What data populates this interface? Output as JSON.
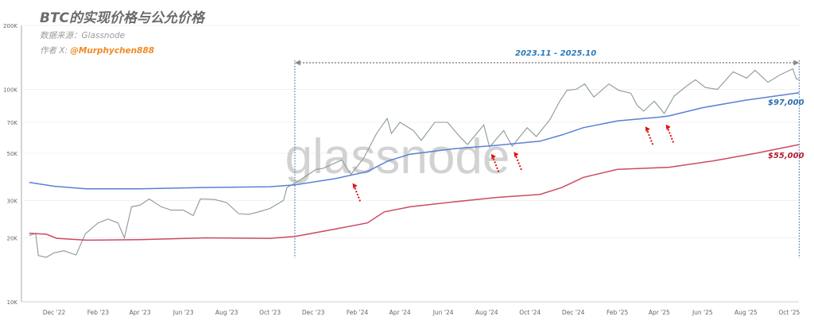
{
  "header": {
    "title": "BTC的实现价格与公允价格",
    "source_label": "数据来源：Glassnode",
    "author_prefix": "作者 X:",
    "author_handle": "@Murphychen888"
  },
  "watermark": "glassnode",
  "annotations": {
    "range_label": "2023.11 - 2025.10",
    "range_start": "2023-11-05",
    "range_end": "2025-10-15",
    "blue_end_label": "$97,000",
    "red_end_label": "$55,000",
    "arrow_dates": [
      "2024-01-23",
      "2024-08-05",
      "2024-09-06",
      "2025-03-10",
      "2025-04-08"
    ]
  },
  "colors": {
    "price": "#8a9a96",
    "blue_line": "#5b7fd6",
    "red_line": "#cc4a62",
    "arrow": "#e01010",
    "range": "#2a7ab8",
    "author": "#f08a24"
  },
  "chart_data": {
    "type": "line",
    "title": "BTC的实现价格与公允价格",
    "y_scale": "log",
    "ylim": [
      10000,
      200000
    ],
    "y_ticks": [
      {
        "v": 10000,
        "label": "10K"
      },
      {
        "v": 20000,
        "label": "20K"
      },
      {
        "v": 30000,
        "label": "30K"
      },
      {
        "v": 50000,
        "label": "50K"
      },
      {
        "v": 70000,
        "label": "70K"
      },
      {
        "v": 100000,
        "label": "100K"
      },
      {
        "v": 200000,
        "label": "200K"
      }
    ],
    "x_ticks": [
      {
        "d": "2022-12-01",
        "label": "Dec '22"
      },
      {
        "d": "2023-02-01",
        "label": "Feb '23"
      },
      {
        "d": "2023-04-01",
        "label": "Apr '23"
      },
      {
        "d": "2023-06-01",
        "label": "Jun '23"
      },
      {
        "d": "2023-08-01",
        "label": "Aug '23"
      },
      {
        "d": "2023-10-01",
        "label": "Oct '23"
      },
      {
        "d": "2023-12-01",
        "label": "Dec '23"
      },
      {
        "d": "2024-02-01",
        "label": "Feb '24"
      },
      {
        "d": "2024-04-01",
        "label": "Apr '24"
      },
      {
        "d": "2024-06-01",
        "label": "Jun '24"
      },
      {
        "d": "2024-08-01",
        "label": "Aug '24"
      },
      {
        "d": "2024-10-01",
        "label": "Oct '24"
      },
      {
        "d": "2024-12-01",
        "label": "Dec '24"
      },
      {
        "d": "2025-02-01",
        "label": "Feb '25"
      },
      {
        "d": "2025-04-01",
        "label": "Apr '25"
      },
      {
        "d": "2025-06-01",
        "label": "Jun '25"
      },
      {
        "d": "2025-08-01",
        "label": "Aug '25"
      },
      {
        "d": "2025-10-01",
        "label": "Oct '25"
      }
    ],
    "grid": true,
    "series": [
      {
        "key": "price",
        "points": [
          [
            "2022-10-27",
            20500
          ],
          [
            "2022-11-05",
            21000
          ],
          [
            "2022-11-09",
            16500
          ],
          [
            "2022-11-20",
            16200
          ],
          [
            "2022-12-01",
            17000
          ],
          [
            "2022-12-15",
            17400
          ],
          [
            "2023-01-01",
            16600
          ],
          [
            "2023-01-14",
            20900
          ],
          [
            "2023-02-01",
            23500
          ],
          [
            "2023-02-15",
            24500
          ],
          [
            "2023-03-01",
            23500
          ],
          [
            "2023-03-10",
            20000
          ],
          [
            "2023-03-20",
            28000
          ],
          [
            "2023-04-01",
            28500
          ],
          [
            "2023-04-14",
            30500
          ],
          [
            "2023-05-01",
            28000
          ],
          [
            "2023-05-15",
            27000
          ],
          [
            "2023-06-01",
            27000
          ],
          [
            "2023-06-15",
            25500
          ],
          [
            "2023-06-25",
            30500
          ],
          [
            "2023-07-15",
            30300
          ],
          [
            "2023-08-01",
            29300
          ],
          [
            "2023-08-18",
            26000
          ],
          [
            "2023-09-01",
            25800
          ],
          [
            "2023-09-15",
            26500
          ],
          [
            "2023-10-01",
            27500
          ],
          [
            "2023-10-20",
            30000
          ],
          [
            "2023-10-25",
            34500
          ],
          [
            "2023-11-10",
            37000
          ],
          [
            "2023-12-05",
            42000
          ],
          [
            "2023-12-15",
            42500
          ],
          [
            "2024-01-10",
            46500
          ],
          [
            "2024-01-23",
            39800
          ],
          [
            "2024-02-10",
            47500
          ],
          [
            "2024-02-28",
            62000
          ],
          [
            "2024-03-14",
            73000
          ],
          [
            "2024-03-20",
            62000
          ],
          [
            "2024-04-01",
            70000
          ],
          [
            "2024-04-20",
            64000
          ],
          [
            "2024-05-01",
            57500
          ],
          [
            "2024-05-20",
            70000
          ],
          [
            "2024-06-07",
            70000
          ],
          [
            "2024-06-24",
            60000
          ],
          [
            "2024-07-05",
            55000
          ],
          [
            "2024-07-28",
            68000
          ],
          [
            "2024-08-05",
            53500
          ],
          [
            "2024-08-25",
            64000
          ],
          [
            "2024-09-06",
            54000
          ],
          [
            "2024-09-27",
            66000
          ],
          [
            "2024-10-10",
            60000
          ],
          [
            "2024-10-29",
            72000
          ],
          [
            "2024-11-12",
            88000
          ],
          [
            "2024-11-22",
            99000
          ],
          [
            "2024-12-05",
            100000
          ],
          [
            "2024-12-17",
            106000
          ],
          [
            "2024-12-30",
            92000
          ],
          [
            "2025-01-20",
            106000
          ],
          [
            "2025-02-03",
            99000
          ],
          [
            "2025-02-20",
            96000
          ],
          [
            "2025-03-01",
            84000
          ],
          [
            "2025-03-10",
            79000
          ],
          [
            "2025-03-25",
            88000
          ],
          [
            "2025-04-08",
            77000
          ],
          [
            "2025-04-22",
            93000
          ],
          [
            "2025-05-10",
            104000
          ],
          [
            "2025-05-22",
            111000
          ],
          [
            "2025-06-05",
            102000
          ],
          [
            "2025-06-22",
            100000
          ],
          [
            "2025-07-14",
            121000
          ],
          [
            "2025-08-02",
            113000
          ],
          [
            "2025-08-14",
            123000
          ],
          [
            "2025-09-01",
            108000
          ],
          [
            "2025-09-18",
            117000
          ],
          [
            "2025-10-06",
            125000
          ],
          [
            "2025-10-11",
            112000
          ],
          [
            "2025-10-15",
            111000
          ]
        ]
      },
      {
        "key": "blue_line",
        "points": [
          [
            "2022-10-27",
            36500
          ],
          [
            "2022-12-01",
            35000
          ],
          [
            "2023-01-15",
            34000
          ],
          [
            "2023-04-01",
            34000
          ],
          [
            "2023-07-01",
            34500
          ],
          [
            "2023-10-01",
            34800
          ],
          [
            "2023-11-05",
            35500
          ],
          [
            "2024-01-01",
            38000
          ],
          [
            "2024-02-15",
            41000
          ],
          [
            "2024-03-15",
            46000
          ],
          [
            "2024-04-15",
            49500
          ],
          [
            "2024-06-15",
            52500
          ],
          [
            "2024-08-15",
            54500
          ],
          [
            "2024-10-15",
            57000
          ],
          [
            "2024-11-15",
            61000
          ],
          [
            "2024-12-15",
            66000
          ],
          [
            "2025-02-01",
            71000
          ],
          [
            "2025-04-01",
            74000
          ],
          [
            "2025-04-15",
            75000
          ],
          [
            "2025-06-01",
            82000
          ],
          [
            "2025-08-01",
            89000
          ],
          [
            "2025-10-15",
            96500
          ]
        ]
      },
      {
        "key": "red_line",
        "points": [
          [
            "2022-10-27",
            21000
          ],
          [
            "2022-11-20",
            20800
          ],
          [
            "2022-12-05",
            19900
          ],
          [
            "2023-01-15",
            19500
          ],
          [
            "2023-04-01",
            19600
          ],
          [
            "2023-07-01",
            20000
          ],
          [
            "2023-10-01",
            19900
          ],
          [
            "2023-11-05",
            20300
          ],
          [
            "2024-01-01",
            22000
          ],
          [
            "2024-02-15",
            23500
          ],
          [
            "2024-03-10",
            26500
          ],
          [
            "2024-04-15",
            28000
          ],
          [
            "2024-06-15",
            29500
          ],
          [
            "2024-08-15",
            31000
          ],
          [
            "2024-10-15",
            32000
          ],
          [
            "2024-11-15",
            34500
          ],
          [
            "2024-12-15",
            38500
          ],
          [
            "2025-02-01",
            42000
          ],
          [
            "2025-04-15",
            43000
          ],
          [
            "2025-06-15",
            46000
          ],
          [
            "2025-08-15",
            50000
          ],
          [
            "2025-10-15",
            55000
          ]
        ]
      }
    ]
  }
}
